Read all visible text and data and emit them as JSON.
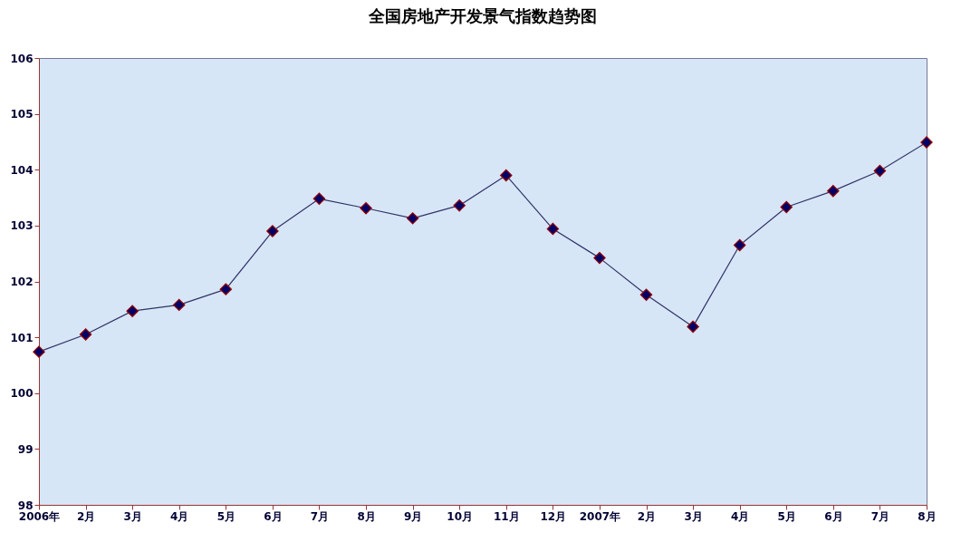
{
  "chart_data": {
    "type": "line",
    "title": "全国房地产开发景气指数趋势图",
    "categories": [
      "2006年",
      "2月",
      "3月",
      "4月",
      "5月",
      "6月",
      "7月",
      "8月",
      "9月",
      "10月",
      "11月",
      "12月",
      "2007年",
      "2月",
      "3月",
      "4月",
      "5月",
      "6月",
      "7月",
      "8月"
    ],
    "series": [
      {
        "color": "#000066",
        "values": [
          100.74,
          101.05,
          101.47,
          101.58,
          101.86,
          102.9,
          103.48,
          103.31,
          103.13,
          103.36,
          103.9,
          102.94,
          102.42,
          101.76,
          101.19,
          102.65,
          103.33,
          103.62,
          103.98,
          104.49
        ]
      }
    ],
    "ylim": [
      98,
      106
    ],
    "yticks": [
      98,
      99,
      100,
      101,
      102,
      103,
      104,
      105,
      106
    ],
    "grid": false,
    "legend": false,
    "marker": "diamond",
    "line_style": "solid"
  }
}
